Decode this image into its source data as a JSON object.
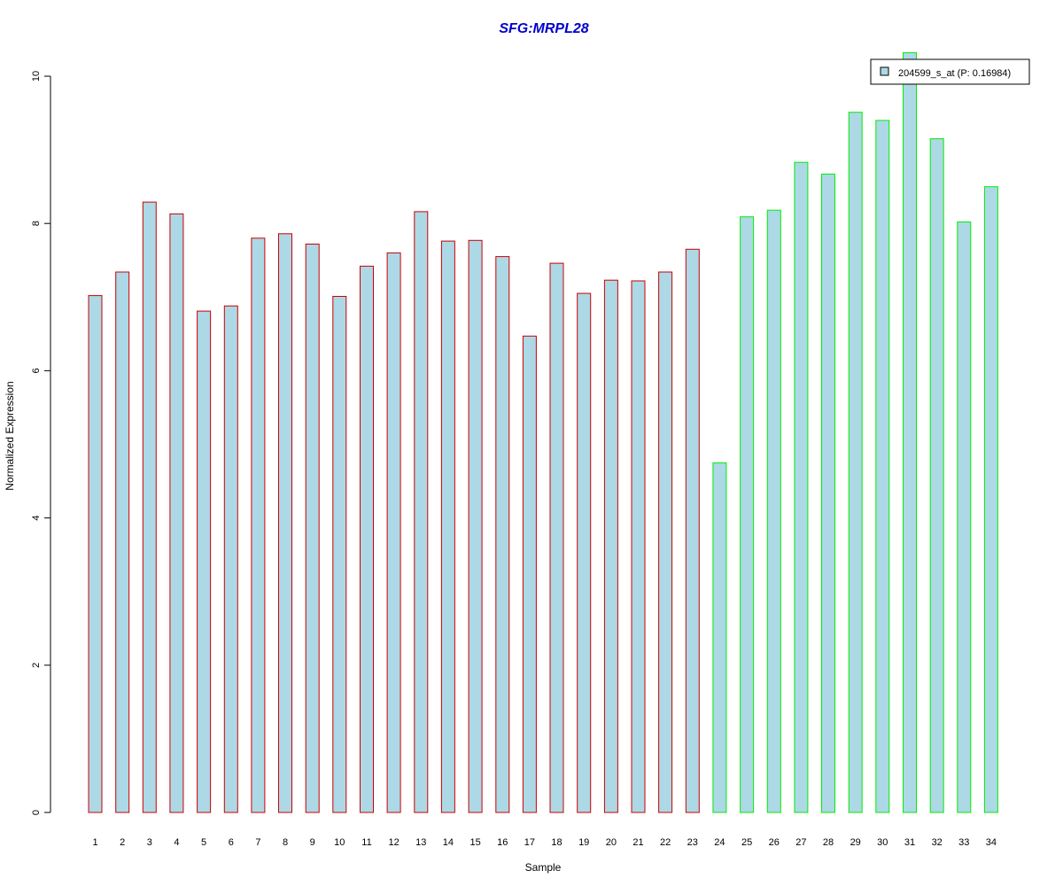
{
  "chart_data": {
    "type": "bar",
    "title": "SFG:MRPL28",
    "xlabel": "Sample",
    "ylabel": "Normalized Expression",
    "categories": [
      "1",
      "2",
      "3",
      "4",
      "5",
      "6",
      "7",
      "8",
      "9",
      "10",
      "11",
      "12",
      "13",
      "14",
      "15",
      "16",
      "17",
      "18",
      "19",
      "20",
      "21",
      "22",
      "23",
      "24",
      "25",
      "26",
      "27",
      "28",
      "29",
      "30",
      "31",
      "32",
      "33",
      "34"
    ],
    "series": [
      {
        "name": "204599_s_at (P: 0.16984)",
        "values": [
          7.02,
          7.34,
          8.29,
          8.13,
          6.81,
          6.88,
          7.8,
          7.86,
          7.72,
          7.01,
          7.42,
          7.6,
          8.16,
          7.76,
          7.77,
          7.55,
          6.47,
          7.46,
          7.05,
          7.23,
          7.22,
          7.34,
          7.65,
          4.75,
          8.09,
          8.18,
          8.83,
          8.67,
          9.51,
          9.4,
          10.32,
          9.15,
          8.02,
          8.5
        ]
      }
    ],
    "group_colors": [
      "#cc0000",
      "#cc0000",
      "#cc0000",
      "#cc0000",
      "#cc0000",
      "#cc0000",
      "#cc0000",
      "#cc0000",
      "#cc0000",
      "#cc0000",
      "#cc0000",
      "#cc0000",
      "#cc0000",
      "#cc0000",
      "#cc0000",
      "#cc0000",
      "#cc0000",
      "#cc0000",
      "#cc0000",
      "#cc0000",
      "#cc0000",
      "#cc0000",
      "#cc0000",
      "#00ee00",
      "#00ee00",
      "#00ee00",
      "#00ee00",
      "#00ee00",
      "#00ee00",
      "#00ee00",
      "#00ee00",
      "#00ee00",
      "#00ee00",
      "#00ee00"
    ],
    "yticks": [
      0,
      2,
      4,
      6,
      8,
      10
    ],
    "ylim": [
      0,
      10.32
    ],
    "grid": false,
    "legend_position": "top-right",
    "fill_color": "#add8e6",
    "title_color": "#0000cc"
  }
}
